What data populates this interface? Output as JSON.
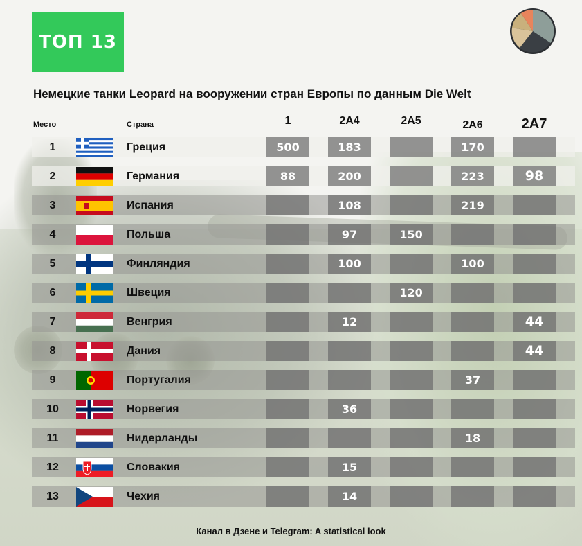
{
  "badge": "ТОП 13",
  "chart_data": {
    "type": "table",
    "title": "Немецкие танки Leopard на вооружении стран Европы по данным Die Welt",
    "columns": {
      "rank": "Место",
      "country": "Страна",
      "models": [
        "1",
        "2A4",
        "2A5",
        "2A6",
        "2A7"
      ]
    },
    "rows": [
      {
        "rank": "1",
        "country": "Греция",
        "flag": "greece-flag",
        "values": [
          500,
          183,
          null,
          170,
          null
        ]
      },
      {
        "rank": "2",
        "country": "Германия",
        "flag": "germany-flag",
        "values": [
          88,
          200,
          null,
          223,
          98
        ]
      },
      {
        "rank": "3",
        "country": "Испания",
        "flag": "spain-flag",
        "values": [
          null,
          108,
          null,
          219,
          null
        ]
      },
      {
        "rank": "4",
        "country": "Польша",
        "flag": "poland-flag",
        "values": [
          null,
          97,
          150,
          null,
          null
        ]
      },
      {
        "rank": "5",
        "country": "Финляндия",
        "flag": "finland-flag",
        "values": [
          null,
          100,
          null,
          100,
          null
        ]
      },
      {
        "rank": "6",
        "country": "Швеция",
        "flag": "sweden-flag",
        "values": [
          null,
          null,
          120,
          null,
          null
        ]
      },
      {
        "rank": "7",
        "country": "Венгрия",
        "flag": "hungary-flag",
        "values": [
          null,
          12,
          null,
          null,
          44
        ]
      },
      {
        "rank": "8",
        "country": "Дания",
        "flag": "denmark-flag",
        "values": [
          null,
          null,
          null,
          null,
          44
        ]
      },
      {
        "rank": "9",
        "country": "Португалия",
        "flag": "portugal-flag",
        "values": [
          null,
          null,
          null,
          37,
          null
        ]
      },
      {
        "rank": "10",
        "country": "Норвегия",
        "flag": "norway-flag",
        "values": [
          null,
          36,
          null,
          null,
          null
        ]
      },
      {
        "rank": "11",
        "country": "Нидерланды",
        "flag": "netherlands-flag",
        "values": [
          null,
          null,
          null,
          18,
          null
        ]
      },
      {
        "rank": "12",
        "country": "Словакия",
        "flag": "slovakia-flag",
        "values": [
          null,
          15,
          null,
          null,
          null
        ]
      },
      {
        "rank": "13",
        "country": "Чехия",
        "flag": "czech-flag",
        "values": [
          null,
          14,
          null,
          null,
          null
        ]
      }
    ]
  },
  "footer": "Канал в Дзене и Telegram: A statistical look",
  "colors": {
    "badge": "#33c95a",
    "cell": "#6e6e6e",
    "logo_slices": [
      "#8e9e99",
      "#3a3f44",
      "#d9c39a",
      "#c9b07c",
      "#e8845c"
    ]
  }
}
